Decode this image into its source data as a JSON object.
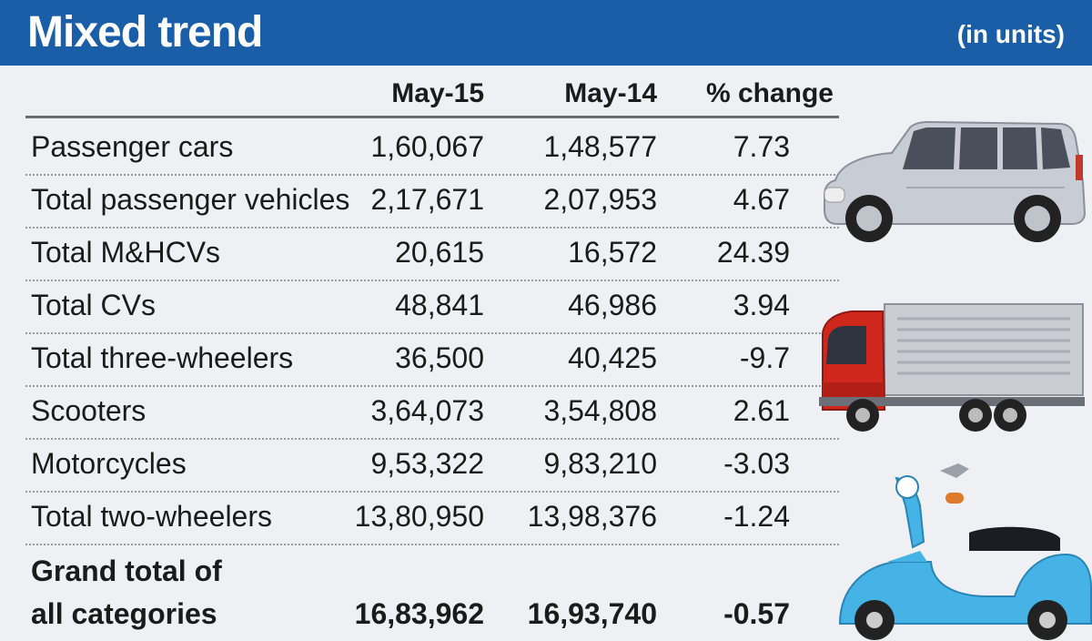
{
  "header": {
    "title": "Mixed trend",
    "unit_note": "(in units)"
  },
  "colors": {
    "header_bg": "#1a5ea8",
    "page_bg": "#eef0f3",
    "text": "#1b1b1b"
  },
  "chart_data": {
    "type": "table",
    "title": "Mixed trend",
    "subtitle": "(in units)",
    "columns": [
      "May-15",
      "May-14",
      "% change"
    ],
    "rows": [
      {
        "label": "Passenger cars",
        "may15": "1,60,067",
        "may14": "1,48,577",
        "change": "7.73"
      },
      {
        "label": "Total passenger vehicles",
        "may15": "2,17,671",
        "may14": "2,07,953",
        "change": "4.67"
      },
      {
        "label": "Total M&HCVs",
        "may15": "20,615",
        "may14": "16,572",
        "change": "24.39"
      },
      {
        "label": "Total CVs",
        "may15": "48,841",
        "may14": "46,986",
        "change": "3.94"
      },
      {
        "label": "Total three-wheelers",
        "may15": "36,500",
        "may14": "40,425",
        "change": "-9.7"
      },
      {
        "label": "Scooters",
        "may15": "3,64,073",
        "may14": "3,54,808",
        "change": "2.61"
      },
      {
        "label": "Motorcycles",
        "may15": "9,53,322",
        "may14": "9,83,210",
        "change": "-3.03"
      },
      {
        "label": "Total two-wheelers",
        "may15": "13,80,950",
        "may14": "13,98,376",
        "change": "-1.24"
      }
    ],
    "total": {
      "label_line1": "Grand total of",
      "label_line2": "all categories",
      "may15": "16,83,962",
      "may14": "16,93,740",
      "change": "-0.57"
    }
  },
  "illustrations": [
    "van-icon",
    "truck-icon",
    "scooter-icon"
  ]
}
